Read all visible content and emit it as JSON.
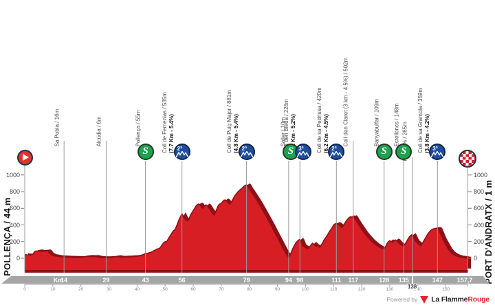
{
  "meta": {
    "left_title": "POLLENÇA / 44 m",
    "right_title": "PORT D'ANDRATX / 1 m",
    "powered_by": "Powered by",
    "brand_black": "La Flamme",
    "brand_red": "Rouge"
  },
  "colors": {
    "profile_red": "#d81e25",
    "profile_dark": "#8f1016",
    "grid": "#9a9a9a",
    "tick": "#777777",
    "ruler": "#a0a0a0"
  },
  "chart_data": {
    "type": "area",
    "title": "",
    "xlabel": "Km",
    "ylabel": "m",
    "xlim": [
      0,
      157.7
    ],
    "ylim": [
      0,
      1050
    ],
    "y_ticks": [
      0,
      200,
      400,
      600,
      800,
      1000
    ],
    "ruler_ticks": [
      0,
      10,
      20,
      30,
      40,
      50,
      60,
      70,
      80,
      90,
      100,
      110,
      120,
      130,
      140,
      150
    ],
    "km_band": {
      "header": "Km",
      "labels": [
        {
          "km": 14,
          "label": "14"
        },
        {
          "km": 29,
          "label": "29"
        },
        {
          "km": 43,
          "label": "43"
        },
        {
          "km": 56,
          "label": "56"
        },
        {
          "km": 79,
          "label": "79"
        },
        {
          "km": 94,
          "label": "94"
        },
        {
          "km": 98,
          "label": "98"
        },
        {
          "km": 111,
          "label": "111"
        },
        {
          "km": 117,
          "label": "117"
        },
        {
          "km": 128,
          "label": "128"
        },
        {
          "km": 135,
          "label": "135"
        },
        {
          "km": 147,
          "label": "147"
        },
        {
          "km": 157.7,
          "label": "157,7"
        }
      ],
      "sub_label": {
        "km": 138,
        "label": "138"
      }
    },
    "waypoints": [
      {
        "km": 0,
        "icon": "start",
        "name": "",
        "stats": ""
      },
      {
        "km": 14,
        "icon": "line",
        "name": "Sa Pobla / 16m",
        "stats": ""
      },
      {
        "km": 29,
        "icon": "line",
        "name": "Alcúdia / 6m",
        "stats": ""
      },
      {
        "km": 43,
        "icon": "sprint",
        "name": "Pollença / 55m",
        "stats": ""
      },
      {
        "km": 56,
        "icon": "climb",
        "cat": "2ª",
        "name": "Coll de Femenias / 535m",
        "stats": "(7.7 Km - 5.4%)"
      },
      {
        "km": 79,
        "icon": "climb",
        "cat": "2ª",
        "name": "Coll de Puig Major / 881m",
        "stats": "(4.8 Km - 5.4%)"
      },
      {
        "km": 94,
        "icon": "sprint",
        "name": "Sóller / 10m",
        "stats": "",
        "dx": 3
      },
      {
        "km": 98,
        "icon": "climb",
        "cat": "3ª",
        "name": "Coll den Bleda / 228m",
        "stats": "(4.1 Km - 5.2%)",
        "dx": 5
      },
      {
        "km": 111,
        "icon": "climb",
        "cat": "2ª",
        "name": "Coll de sa Pedrissa / 420m",
        "stats": "(6.2 Km - 4.5%)"
      },
      {
        "km": 117,
        "icon": "line",
        "name": "Coll den Claret (3 km - 4.5%) / 502m",
        "stats": ""
      },
      {
        "km": 128,
        "icon": "sprint",
        "name": "Banyabulfar / 109m",
        "stats": ""
      },
      {
        "km": 135,
        "icon": "sprint",
        "name": "Estellencs / 148m",
        "stats": ""
      },
      {
        "km": 138,
        "icon": "line",
        "name": "Km - 5% / 285m",
        "stats": "",
        "label_bottom": 226,
        "stem_top": 228
      },
      {
        "km": 147,
        "icon": "climb",
        "cat": "3ª",
        "name": "Coll de sa Gramola / 359m",
        "stats": "(3.8 Km - 4.2%)"
      },
      {
        "km": 157.7,
        "icon": "finish",
        "name": "",
        "stats": ""
      }
    ],
    "profile": [
      [
        0,
        44
      ],
      [
        1,
        40
      ],
      [
        2,
        38
      ],
      [
        3,
        50
      ],
      [
        3.5,
        80
      ],
      [
        4,
        85
      ],
      [
        5,
        88
      ],
      [
        6,
        82
      ],
      [
        7,
        86
      ],
      [
        8,
        88
      ],
      [
        8.5,
        75
      ],
      [
        9,
        50
      ],
      [
        10,
        32
      ],
      [
        11,
        26
      ],
      [
        12,
        20
      ],
      [
        14,
        16
      ],
      [
        16,
        12
      ],
      [
        18,
        10
      ],
      [
        20,
        8
      ],
      [
        21,
        16
      ],
      [
        22,
        20
      ],
      [
        23,
        22
      ],
      [
        24,
        20
      ],
      [
        25,
        22
      ],
      [
        26,
        14
      ],
      [
        27,
        8
      ],
      [
        29,
        6
      ],
      [
        30,
        8
      ],
      [
        31,
        10
      ],
      [
        32,
        16
      ],
      [
        33,
        20
      ],
      [
        34,
        12
      ],
      [
        35,
        12
      ],
      [
        36,
        15
      ],
      [
        37,
        16
      ],
      [
        38,
        18
      ],
      [
        39,
        20
      ],
      [
        40,
        24
      ],
      [
        41,
        30
      ],
      [
        42,
        42
      ],
      [
        43,
        55
      ],
      [
        44,
        62
      ],
      [
        45,
        72
      ],
      [
        46,
        90
      ],
      [
        47,
        108
      ],
      [
        48,
        120
      ],
      [
        48.5,
        140
      ],
      [
        49,
        165
      ],
      [
        49.5,
        185
      ],
      [
        50,
        200
      ],
      [
        50.5,
        198
      ],
      [
        51,
        225
      ],
      [
        51.5,
        255
      ],
      [
        52,
        280
      ],
      [
        52.5,
        308
      ],
      [
        53,
        330
      ],
      [
        53.5,
        342
      ],
      [
        54,
        380
      ],
      [
        54.5,
        425
      ],
      [
        55,
        468
      ],
      [
        55.5,
        500
      ],
      [
        56,
        535
      ],
      [
        56.3,
        520
      ],
      [
        56.8,
        480
      ],
      [
        57.5,
        458
      ],
      [
        58,
        450
      ],
      [
        58.5,
        468
      ],
      [
        59,
        515
      ],
      [
        59.5,
        545
      ],
      [
        60,
        572
      ],
      [
        60.5,
        600
      ],
      [
        61,
        628
      ],
      [
        61.5,
        645
      ],
      [
        62,
        652
      ],
      [
        62.5,
        640
      ],
      [
        63,
        612
      ],
      [
        63.5,
        600
      ],
      [
        64,
        622
      ],
      [
        64.5,
        640
      ],
      [
        65,
        633
      ],
      [
        65.5,
        608
      ],
      [
        66,
        582
      ],
      [
        66.5,
        558
      ],
      [
        67,
        532
      ],
      [
        67.5,
        520
      ],
      [
        68,
        558
      ],
      [
        68.5,
        600
      ],
      [
        69,
        638
      ],
      [
        69.5,
        652
      ],
      [
        70,
        662
      ],
      [
        70.5,
        680
      ],
      [
        71,
        698
      ],
      [
        71.5,
        700
      ],
      [
        72,
        682
      ],
      [
        72.5,
        662
      ],
      [
        73,
        652
      ],
      [
        73.5,
        672
      ],
      [
        74,
        700
      ],
      [
        74.5,
        730
      ],
      [
        75,
        758
      ],
      [
        75.5,
        780
      ],
      [
        76,
        800
      ],
      [
        76.5,
        816
      ],
      [
        77,
        830
      ],
      [
        77.5,
        845
      ],
      [
        78,
        862
      ],
      [
        78.5,
        874
      ],
      [
        79,
        883
      ],
      [
        79.4,
        868
      ],
      [
        80,
        832
      ],
      [
        81,
        782
      ],
      [
        82,
        730
      ],
      [
        83,
        678
      ],
      [
        84,
        622
      ],
      [
        85,
        562
      ],
      [
        86,
        502
      ],
      [
        87,
        440
      ],
      [
        88,
        378
      ],
      [
        89,
        312
      ],
      [
        90,
        248
      ],
      [
        91,
        182
      ],
      [
        92,
        118
      ],
      [
        93,
        58
      ],
      [
        94,
        12
      ],
      [
        94.4,
        28
      ],
      [
        95,
        80
      ],
      [
        95.5,
        118
      ],
      [
        96,
        150
      ],
      [
        96.5,
        180
      ],
      [
        97,
        202
      ],
      [
        97.5,
        218
      ],
      [
        98,
        228
      ],
      [
        98.4,
        205
      ],
      [
        99,
        152
      ],
      [
        99.5,
        138
      ],
      [
        100,
        128
      ],
      [
        100.5,
        122
      ],
      [
        101,
        118
      ],
      [
        101.5,
        140
      ],
      [
        102,
        162
      ],
      [
        102.5,
        180
      ],
      [
        103,
        168
      ],
      [
        103.5,
        150
      ],
      [
        104,
        140
      ],
      [
        104.5,
        150
      ],
      [
        105,
        132
      ],
      [
        105.5,
        152
      ],
      [
        106,
        180
      ],
      [
        106.5,
        212
      ],
      [
        107,
        240
      ],
      [
        107.5,
        262
      ],
      [
        108,
        290
      ],
      [
        108.5,
        320
      ],
      [
        109,
        342
      ],
      [
        109.5,
        370
      ],
      [
        110,
        398
      ],
      [
        110.5,
        412
      ],
      [
        111,
        420
      ],
      [
        111.5,
        410
      ],
      [
        112,
        398
      ],
      [
        112.5,
        382
      ],
      [
        113,
        370
      ],
      [
        113.5,
        392
      ],
      [
        114,
        420
      ],
      [
        114.5,
        448
      ],
      [
        115,
        468
      ],
      [
        115.5,
        488
      ],
      [
        116,
        498
      ],
      [
        116.5,
        494
      ],
      [
        117,
        502
      ],
      [
        117.4,
        486
      ],
      [
        118,
        452
      ],
      [
        118.5,
        425
      ],
      [
        119,
        398
      ],
      [
        119.5,
        375
      ],
      [
        120,
        350
      ],
      [
        120.5,
        325
      ],
      [
        121,
        300
      ],
      [
        121.5,
        280
      ],
      [
        122,
        260
      ],
      [
        122.5,
        240
      ],
      [
        123,
        222
      ],
      [
        123.5,
        205
      ],
      [
        124,
        190
      ],
      [
        124.5,
        175
      ],
      [
        125,
        162
      ],
      [
        125.5,
        150
      ],
      [
        126,
        140
      ],
      [
        126.5,
        130
      ],
      [
        127,
        120
      ],
      [
        127.5,
        114
      ],
      [
        128,
        109
      ],
      [
        128.4,
        130
      ],
      [
        129,
        172
      ],
      [
        129.5,
        198
      ],
      [
        130,
        210
      ],
      [
        130.5,
        200
      ],
      [
        131,
        190
      ],
      [
        131.5,
        208
      ],
      [
        132,
        220
      ],
      [
        132.5,
        210
      ],
      [
        133,
        190
      ],
      [
        133.5,
        172
      ],
      [
        134,
        160
      ],
      [
        134.5,
        152
      ],
      [
        135,
        148
      ],
      [
        135.5,
        172
      ],
      [
        136,
        200
      ],
      [
        136.5,
        230
      ],
      [
        137,
        258
      ],
      [
        137.5,
        274
      ],
      [
        138,
        285
      ],
      [
        138.4,
        262
      ],
      [
        139,
        215
      ],
      [
        139.5,
        192
      ],
      [
        140,
        180
      ],
      [
        140.5,
        162
      ],
      [
        141,
        150
      ],
      [
        141.5,
        172
      ],
      [
        142,
        200
      ],
      [
        142.5,
        230
      ],
      [
        143,
        258
      ],
      [
        143.5,
        288
      ],
      [
        144,
        310
      ],
      [
        144.5,
        330
      ],
      [
        145,
        345
      ],
      [
        145.5,
        352
      ],
      [
        146,
        356
      ],
      [
        146.5,
        358
      ],
      [
        147,
        359
      ],
      [
        147.5,
        342
      ],
      [
        148,
        302
      ],
      [
        148.5,
        262
      ],
      [
        149,
        222
      ],
      [
        149.5,
        192
      ],
      [
        150,
        162
      ],
      [
        150.5,
        132
      ],
      [
        151,
        102
      ],
      [
        151.5,
        82
      ],
      [
        152,
        62
      ],
      [
        152.5,
        50
      ],
      [
        153,
        40
      ],
      [
        153.5,
        32
      ],
      [
        154,
        24
      ],
      [
        155,
        15
      ],
      [
        156,
        10
      ],
      [
        157,
        5
      ],
      [
        157.7,
        1
      ]
    ]
  }
}
